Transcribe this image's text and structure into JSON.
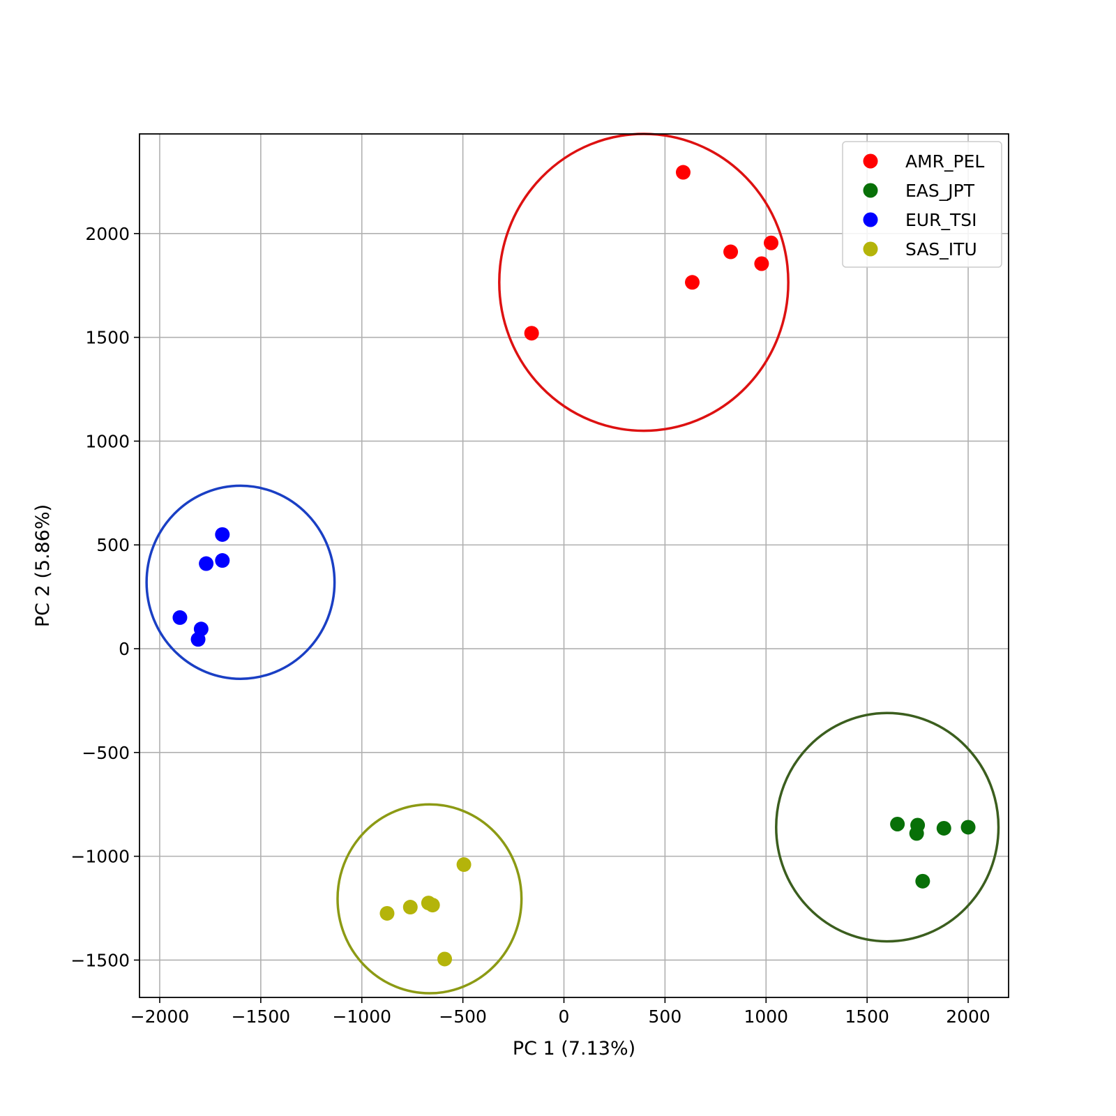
{
  "chart_data": {
    "type": "scatter",
    "xlabel": "PC 1 (7.13%)",
    "ylabel": "PC 2 (5.86%)",
    "xlim": [
      -2100,
      2200
    ],
    "ylim": [
      -1680,
      2480
    ],
    "xticks": [
      -2000,
      -1500,
      -1000,
      -500,
      0,
      500,
      1000,
      1500,
      2000
    ],
    "yticks": [
      -1500,
      -1000,
      -500,
      0,
      500,
      1000,
      1500,
      2000
    ],
    "xtick_labels": [
      "−2000",
      "−1500",
      "−1000",
      "−500",
      "0",
      "500",
      "1000",
      "1500",
      "2000"
    ],
    "ytick_labels": [
      "−1500",
      "−1000",
      "−500",
      "0",
      "500",
      "1000",
      "1500",
      "2000"
    ],
    "grid": true,
    "legend_position": "top-right",
    "series": [
      {
        "name": "AMR_PEL",
        "color": "#ff0000",
        "ring_color": "#dd1111",
        "points": [
          [
            590,
            2295
          ],
          [
            825,
            1912
          ],
          [
            1025,
            1955
          ],
          [
            978,
            1855
          ],
          [
            635,
            1765
          ],
          [
            -160,
            1520
          ]
        ],
        "ring": {
          "cx": 395,
          "cy": 1765,
          "r": 715
        }
      },
      {
        "name": "EAS_JPT",
        "color": "#087008",
        "ring_color": "#3b5e1e",
        "points": [
          [
            1650,
            -845
          ],
          [
            1750,
            -850
          ],
          [
            1745,
            -890
          ],
          [
            1880,
            -865
          ],
          [
            2000,
            -860
          ],
          [
            1775,
            -1120
          ]
        ],
        "ring": {
          "cx": 1600,
          "cy": -860,
          "r": 550
        }
      },
      {
        "name": "EUR_TSI",
        "color": "#0000ff",
        "ring_color": "#1a3fc4",
        "points": [
          [
            -1690,
            550
          ],
          [
            -1690,
            425
          ],
          [
            -1770,
            410
          ],
          [
            -1900,
            150
          ],
          [
            -1795,
            95
          ],
          [
            -1810,
            45
          ]
        ],
        "ring": {
          "cx": -1600,
          "cy": 320,
          "r": 465
        }
      },
      {
        "name": "SAS_ITU",
        "color": "#b4b40a",
        "ring_color": "#8c9a14",
        "points": [
          [
            -495,
            -1040
          ],
          [
            -670,
            -1225
          ],
          [
            -650,
            -1235
          ],
          [
            -760,
            -1245
          ],
          [
            -875,
            -1275
          ],
          [
            -590,
            -1495
          ]
        ],
        "ring": {
          "cx": -665,
          "cy": -1205,
          "r": 455
        }
      }
    ]
  }
}
